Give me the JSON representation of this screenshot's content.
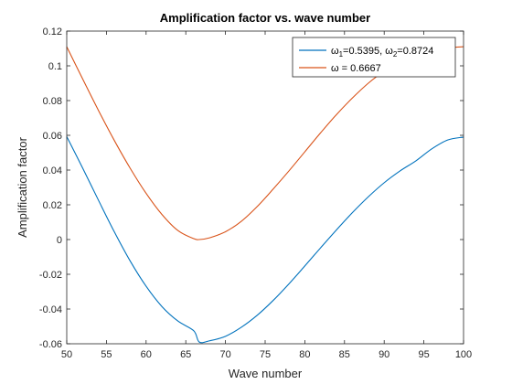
{
  "chart_data": {
    "type": "line",
    "title": "Amplification factor vs. wave number",
    "xlabel": "Wave number",
    "ylabel": "Amplification factor",
    "xlim": [
      50,
      100
    ],
    "ylim": [
      -0.06,
      0.12
    ],
    "xticks": [
      50,
      55,
      60,
      65,
      70,
      75,
      80,
      85,
      90,
      95,
      100
    ],
    "xtick_labels": [
      "50",
      "55",
      "60",
      "65",
      "70",
      "75",
      "80",
      "85",
      "90",
      "95",
      "100"
    ],
    "yticks": [
      -0.06,
      -0.04,
      -0.02,
      0,
      0.02,
      0.04,
      0.06,
      0.08,
      0.1,
      0.12
    ],
    "ytick_labels": [
      "-0.06",
      "-0.04",
      "-0.02",
      "0",
      "0.02",
      "0.04",
      "0.06",
      "0.08",
      "0.1",
      "0.12"
    ],
    "grid": false,
    "legend_position": "top-right",
    "series": [
      {
        "name": "ω1=0.5395, ω2=0.8724",
        "legend": {
          "sym1": "ω",
          "sub1": "1",
          "val1": "=0.5395, ",
          "sym2": "ω",
          "sub2": "2",
          "val2": "=0.8724"
        },
        "color": "#0072BD",
        "x": [
          50,
          52,
          54,
          56,
          58,
          60,
          62,
          64,
          66,
          66.7,
          68,
          70,
          72,
          74,
          76,
          78,
          80,
          82,
          84,
          86,
          88,
          90,
          92,
          94,
          96,
          98,
          100
        ],
        "y": [
          0.0593,
          0.0412,
          0.0226,
          0.0044,
          -0.0124,
          -0.0269,
          -0.0386,
          -0.0469,
          -0.0525,
          -0.059,
          -0.0583,
          -0.0557,
          -0.0505,
          -0.0436,
          -0.0351,
          -0.0255,
          -0.0152,
          -0.0047,
          0.0056,
          0.0155,
          0.0246,
          0.0327,
          0.0395,
          0.0453,
          0.0522,
          0.0573,
          0.059
        ]
      },
      {
        "name": "ω = 0.6667",
        "legend": {
          "sym1": "ω",
          "val1": " = 0.6667"
        },
        "color": "#D95319",
        "x": [
          50,
          52,
          54,
          56,
          58,
          60,
          62,
          64,
          66,
          66.7,
          68,
          70,
          72,
          74,
          76,
          78,
          80,
          82,
          84,
          86,
          88,
          90,
          92,
          94,
          96,
          98,
          100
        ],
        "y": [
          0.111,
          0.0925,
          0.0743,
          0.057,
          0.041,
          0.0266,
          0.0144,
          0.0052,
          0.0005,
          0.0,
          0.001,
          0.0045,
          0.0105,
          0.019,
          0.029,
          0.0395,
          0.0505,
          0.0615,
          0.072,
          0.0815,
          0.09,
          0.097,
          0.103,
          0.107,
          0.1095,
          0.1105,
          0.111
        ]
      }
    ]
  }
}
